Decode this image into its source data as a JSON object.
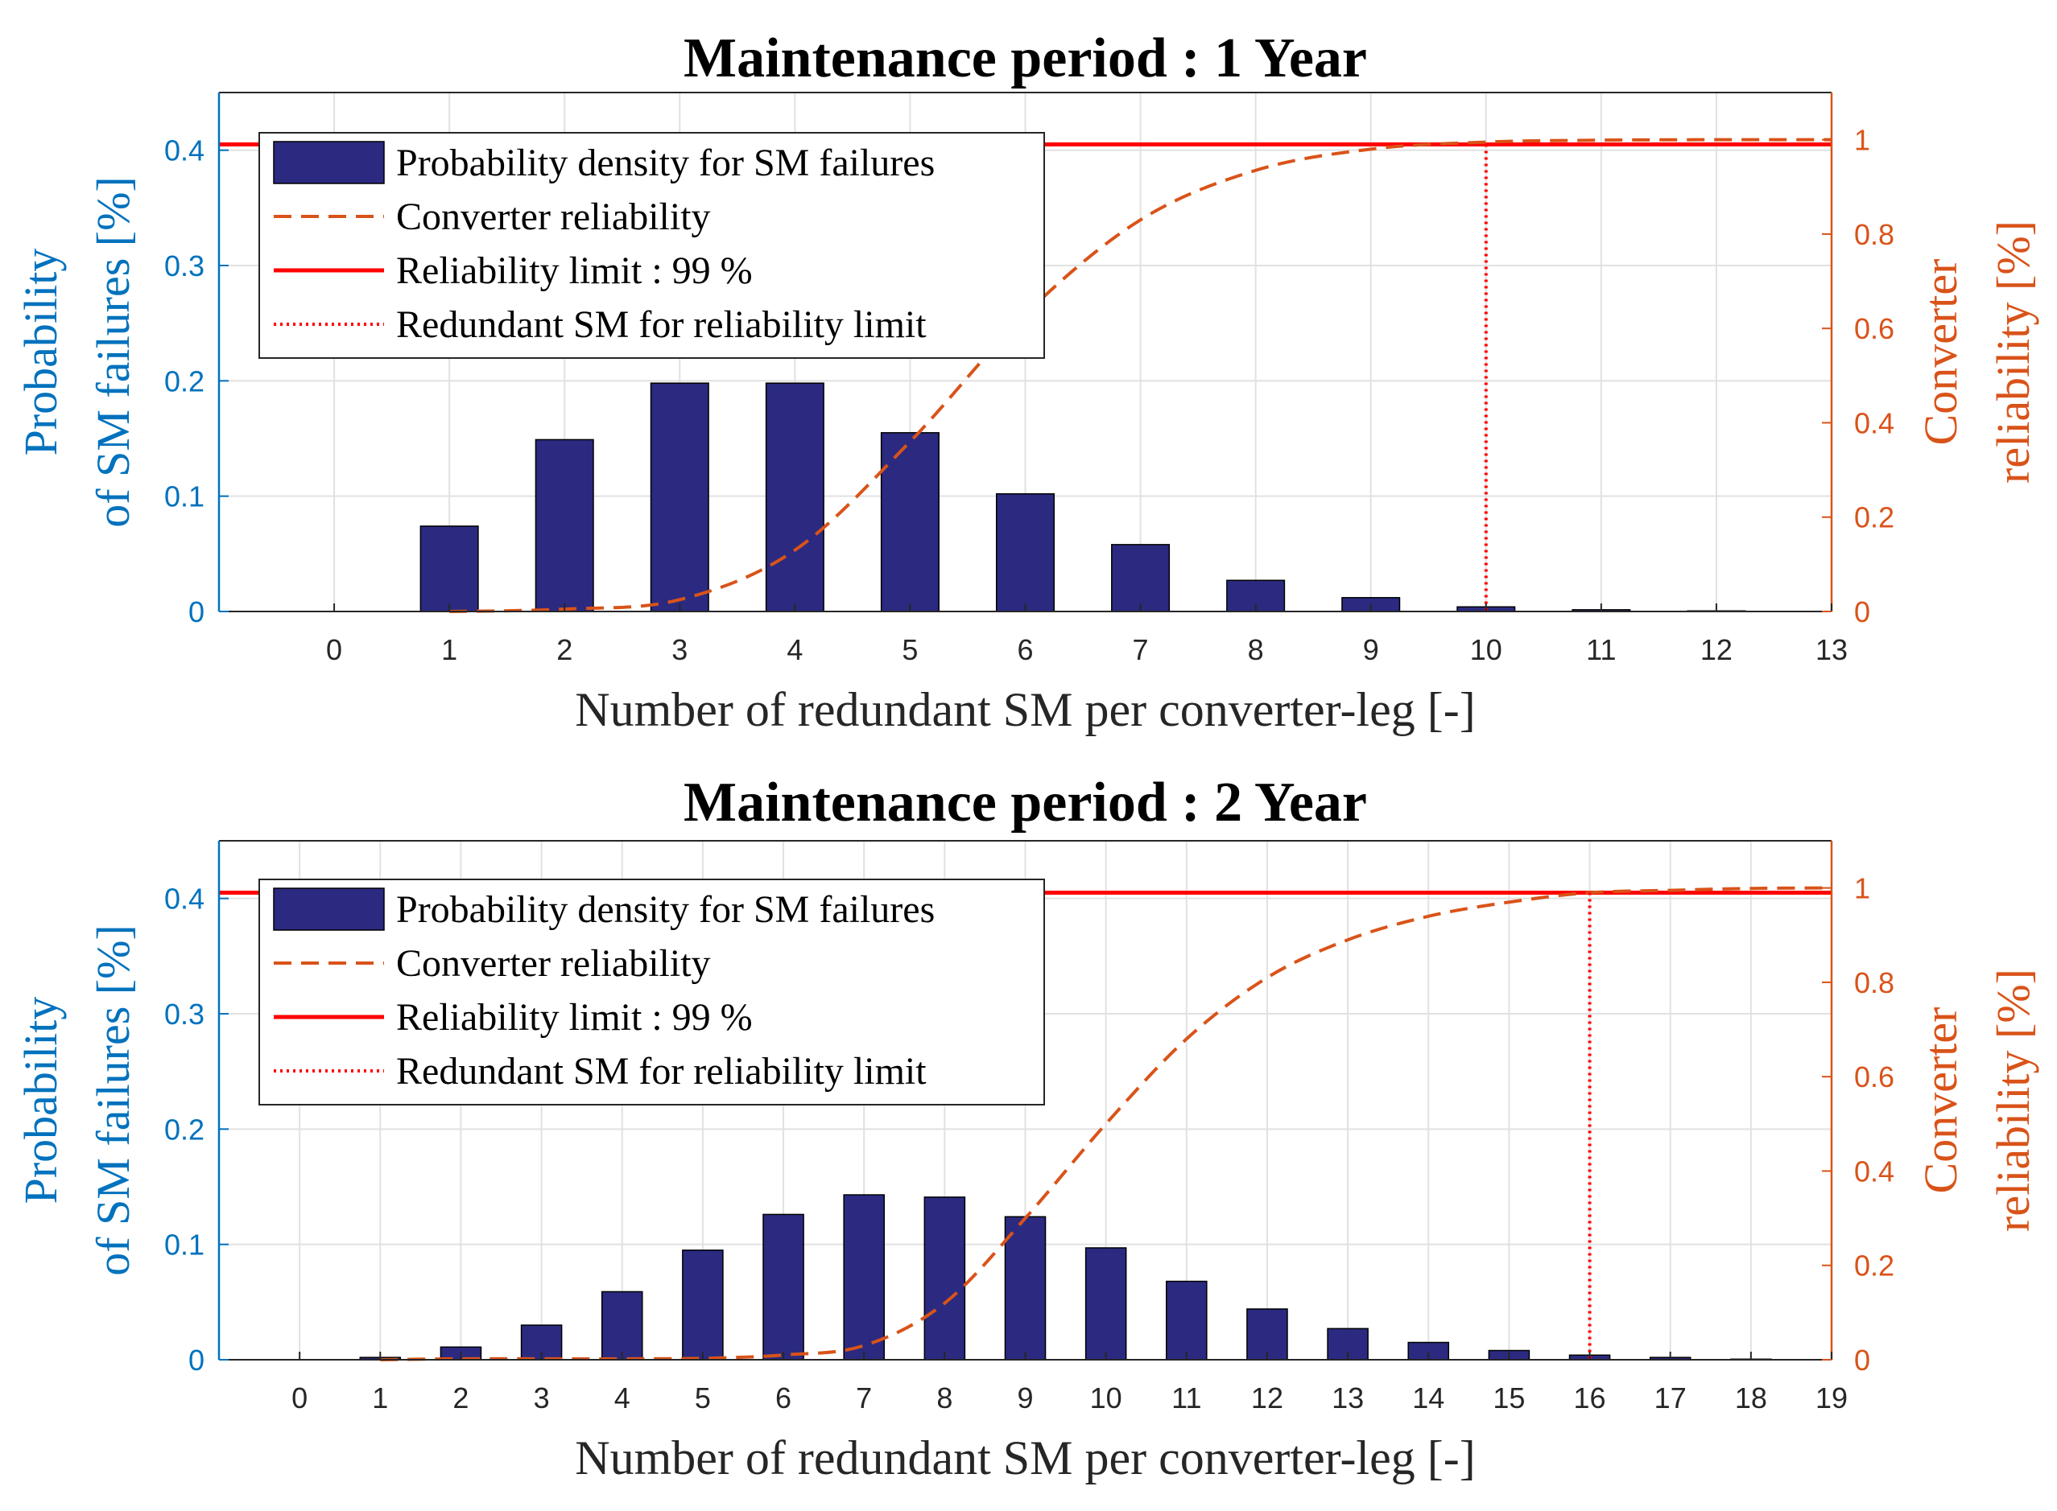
{
  "chart_data": [
    {
      "type": "bar",
      "title": "Maintenance period : 1 Year",
      "xlabel": "Number of redundant SM per converter-leg [-]",
      "ylabel_left": [
        "Probability",
        "of SM failures [%]"
      ],
      "ylabel_right": [
        "Converter",
        "reliability [%]"
      ],
      "xlim": [
        -1,
        13
      ],
      "ylim_left": [
        0,
        0.45
      ],
      "ylim_right": [
        0,
        1.1
      ],
      "x_ticks": [
        0,
        1,
        2,
        3,
        4,
        5,
        6,
        7,
        8,
        9,
        10,
        11,
        12,
        13
      ],
      "y_ticks_left": [
        0,
        0.1,
        0.2,
        0.3,
        0.4
      ],
      "y_ticks_left_labels": [
        "0",
        "0.1",
        "0.2",
        "0.3",
        "0.4"
      ],
      "y_ticks_right": [
        0,
        0.2,
        0.4,
        0.6,
        0.8,
        1
      ],
      "y_ticks_right_labels": [
        "0",
        "0.2",
        "0.4",
        "0.6",
        "0.8",
        "1"
      ],
      "grid": true,
      "series": [
        {
          "name": "Probability density for SM failures",
          "axis": "left",
          "x": [
            0,
            1,
            2,
            3,
            4,
            5,
            6,
            7,
            8,
            9,
            10,
            11,
            12
          ],
          "values": [
            0,
            0.074,
            0.149,
            0.198,
            0.198,
            0.155,
            0.102,
            0.058,
            0.027,
            0.012,
            0.004,
            0.0015,
            0.0005
          ]
        },
        {
          "name": "Converter reliability",
          "axis": "right",
          "x": [
            1,
            2,
            3,
            4,
            5,
            6,
            7,
            8,
            9,
            10,
            11,
            12,
            13
          ],
          "values": [
            0.0,
            0.005,
            0.025,
            0.13,
            0.36,
            0.63,
            0.83,
            0.935,
            0.98,
            0.995,
            0.999,
            1.0,
            1.0
          ]
        },
        {
          "name": "Reliability limit : 99 %",
          "axis": "right",
          "value": 0.99
        },
        {
          "name": "Redundant SM for reliability limit",
          "axis": "right",
          "x": 10
        }
      ],
      "legend_position": "top-left"
    },
    {
      "type": "bar",
      "title": "Maintenance period : 2 Year",
      "xlabel": "Number of redundant SM per converter-leg [-]",
      "ylabel_left": [
        "Probability",
        "of SM failures [%]"
      ],
      "ylabel_right": [
        "Converter",
        "reliability [%]"
      ],
      "xlim": [
        -1,
        19
      ],
      "ylim_left": [
        0,
        0.45
      ],
      "ylim_right": [
        0,
        1.1
      ],
      "x_ticks": [
        0,
        1,
        2,
        3,
        4,
        5,
        6,
        7,
        8,
        9,
        10,
        11,
        12,
        13,
        14,
        15,
        16,
        17,
        18,
        19
      ],
      "y_ticks_left": [
        0,
        0.1,
        0.2,
        0.3,
        0.4
      ],
      "y_ticks_left_labels": [
        "0",
        "0.1",
        "0.2",
        "0.3",
        "0.4"
      ],
      "y_ticks_right": [
        0,
        0.2,
        0.4,
        0.6,
        0.8,
        1
      ],
      "y_ticks_right_labels": [
        "0",
        "0.2",
        "0.4",
        "0.6",
        "0.8",
        "1"
      ],
      "grid": true,
      "series": [
        {
          "name": "Probability density for SM failures",
          "axis": "left",
          "x": [
            0,
            1,
            2,
            3,
            4,
            5,
            6,
            7,
            8,
            9,
            10,
            11,
            12,
            13,
            14,
            15,
            16,
            17,
            18
          ],
          "values": [
            0,
            0.002,
            0.011,
            0.03,
            0.059,
            0.095,
            0.126,
            0.143,
            0.141,
            0.124,
            0.097,
            0.068,
            0.044,
            0.027,
            0.015,
            0.008,
            0.004,
            0.002,
            0.0005
          ]
        },
        {
          "name": "Converter reliability",
          "axis": "right",
          "x": [
            1,
            2,
            3,
            4,
            5,
            6,
            7,
            8,
            9,
            10,
            11,
            12,
            13,
            14,
            15,
            16,
            17,
            18,
            19
          ],
          "values": [
            0.0,
            0.002,
            0.002,
            0.002,
            0.003,
            0.01,
            0.03,
            0.12,
            0.3,
            0.5,
            0.68,
            0.81,
            0.89,
            0.94,
            0.97,
            0.99,
            0.995,
            0.999,
            1.0
          ]
        },
        {
          "name": "Reliability limit : 99 %",
          "axis": "right",
          "value": 0.99
        },
        {
          "name": "Redundant SM for reliability limit",
          "axis": "right",
          "x": 16
        }
      ],
      "legend_position": "top-left"
    }
  ],
  "colors": {
    "bar_fill": "#2B2A80",
    "bar_stroke": "#000000",
    "reliability_curve": "#D95319",
    "limit_line": "#FF0000",
    "left_axis": "#0072BD",
    "right_axis": "#D95319",
    "grid": "#E1E1E1"
  }
}
